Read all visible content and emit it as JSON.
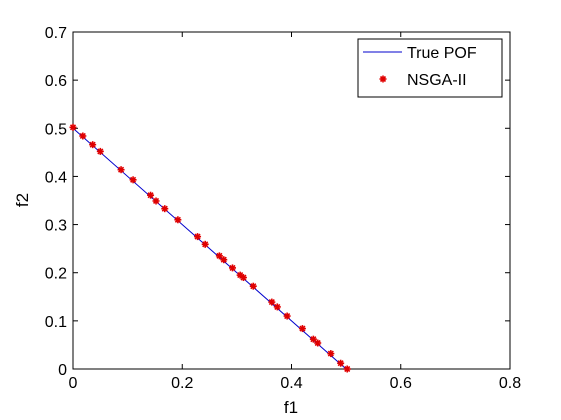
{
  "chart_data": {
    "type": "scatter",
    "title": "",
    "xlabel": "f1",
    "ylabel": "f2",
    "xlim": [
      0,
      0.8
    ],
    "ylim": [
      0,
      0.7
    ],
    "xticks": [
      "0",
      "0.2",
      "0.4",
      "0.6",
      "0.8"
    ],
    "yticks": [
      "0",
      "0.1",
      "0.2",
      "0.3",
      "0.4",
      "0.5",
      "0.6",
      "0.7"
    ],
    "grid": false,
    "legend_position": "top-right",
    "series": [
      {
        "name": "True POF",
        "type": "line",
        "color": "#0000cc",
        "x": [
          0,
          0.5
        ],
        "y": [
          0.5,
          0
        ]
      },
      {
        "name": "NSGA-II",
        "type": "scatter",
        "marker": "asterisk",
        "color": "#e00000",
        "x": [
          0.0,
          0.018,
          0.036,
          0.05,
          0.088,
          0.11,
          0.142,
          0.152,
          0.168,
          0.192,
          0.228,
          0.242,
          0.268,
          0.276,
          0.292,
          0.306,
          0.312,
          0.33,
          0.364,
          0.374,
          0.392,
          0.42,
          0.44,
          0.448,
          0.472,
          0.49,
          0.502
        ],
        "y": [
          0.502,
          0.484,
          0.466,
          0.452,
          0.414,
          0.393,
          0.361,
          0.349,
          0.333,
          0.31,
          0.275,
          0.259,
          0.235,
          0.227,
          0.21,
          0.195,
          0.19,
          0.172,
          0.139,
          0.129,
          0.11,
          0.084,
          0.062,
          0.054,
          0.032,
          0.012,
          0.0
        ]
      }
    ]
  }
}
